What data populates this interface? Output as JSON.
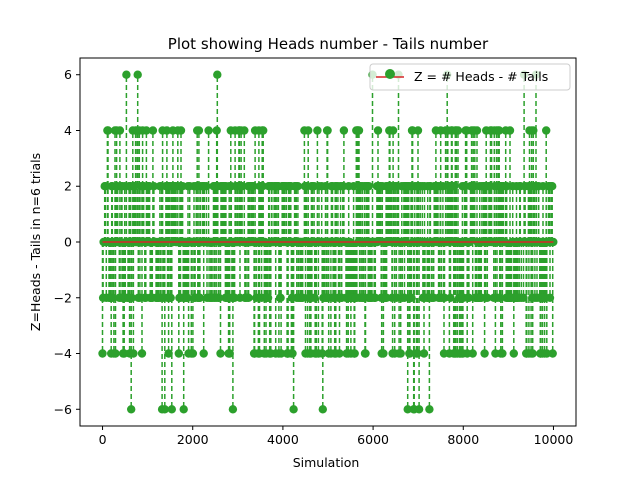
{
  "chart_data": {
    "type": "scatter",
    "title": "Plot showing Heads number -  Tails number",
    "xlabel": "Simulation",
    "ylabel": "Z=Heads - Tails in n=6 trials",
    "xlim": [
      -500,
      10500
    ],
    "ylim": [
      -6.6,
      6.6
    ],
    "xticks": [
      0,
      2000,
      4000,
      6000,
      8000,
      10000
    ],
    "xtick_labels": [
      "0",
      "2000",
      "4000",
      "6000",
      "8000",
      "10000"
    ],
    "yticks": [
      -6,
      -4,
      -2,
      0,
      2,
      4,
      6
    ],
    "ytick_labels": [
      "−6",
      "−4",
      "−2",
      "0",
      "2",
      "4",
      "6"
    ],
    "grid": false,
    "legend": "top-right",
    "n_simulations": 10000,
    "possible_values": [
      -6,
      -4,
      -2,
      0,
      2,
      4,
      6
    ],
    "series": [
      {
        "name": "Z = # Heads - # Tails",
        "kind": "stem",
        "color": "#2ca02c",
        "marker": "circle",
        "linestyle": "dashed",
        "x_range": [
          0,
          10000
        ],
        "y_values": [
          -6,
          -4,
          -2,
          0,
          2,
          4,
          6
        ]
      }
    ],
    "baseline": {
      "y": 0,
      "color": "#d62728"
    }
  }
}
